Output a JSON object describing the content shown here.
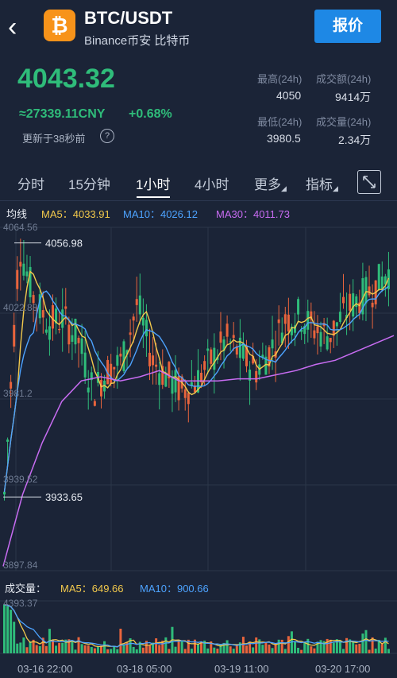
{
  "header": {
    "back_icon": "chevron-left-icon",
    "coin_icon": "bitcoin-icon",
    "coin_glyph": "₿",
    "pair": "BTC/USDT",
    "subtitle": "Binance币安 比特币",
    "quote_button": "报价"
  },
  "ticker": {
    "price": "4043.32",
    "cny": "≈27339.11CNY",
    "change": "+0.68%",
    "updated": "更新于38秒前",
    "help_icon": "question-circle-icon",
    "help_glyph": "?"
  },
  "stats": {
    "high_label": "最高(24h)",
    "high_value": "4050",
    "turnover_label": "成交额(24h)",
    "turnover_value": "9414万",
    "low_label": "最低(24h)",
    "low_value": "3980.5",
    "volume_label": "成交量(24h)",
    "volume_value": "2.34万"
  },
  "tabs": {
    "t1": "分时",
    "t2": "15分钟",
    "t3": "1小时",
    "t4": "4小时",
    "more": "更多",
    "indicator": "指标",
    "expand_icon": "expand-icon"
  },
  "ma": {
    "label": "均线",
    "ma5": "MA5：4033.91",
    "ma10": "MA10：4026.12",
    "ma30": "MA30：4011.73"
  },
  "vol": {
    "label": "成交量：",
    "ma5": "MA5：649.66",
    "ma10": "MA10：900.66"
  },
  "colors": {
    "up": "#2fbc7a",
    "down": "#e8643c",
    "ma5": "#f2c94c",
    "ma10": "#4da3ff",
    "ma30": "#c86cf2"
  },
  "chart_data": {
    "type": "candlestick",
    "y_ticks": [
      "4064.56",
      "4022.88",
      "3981.2",
      "3939.52",
      "3897.84"
    ],
    "ylim": [
      3897.84,
      4064.56
    ],
    "x_ticks": [
      "03-16 22:00",
      "03-18 05:00",
      "03-19 11:00",
      "03-20 17:00"
    ],
    "max_label": "4056.98",
    "min_label": "3933.65",
    "volume_max_label": "4393.37",
    "trend_points": [
      3935,
      4056,
      4030,
      4018,
      4020,
      4010,
      3985,
      3995,
      4000,
      4028,
      4000,
      3992,
      3985,
      3990,
      4000,
      4010,
      4003,
      3995,
      4005,
      4020,
      4022,
      4015,
      4012,
      4023,
      4030,
      4035,
      4043
    ],
    "ma30_points": [
      3900,
      3935,
      3960,
      3980,
      3990,
      3992,
      3990,
      3992,
      3995,
      3990,
      3990,
      3990,
      3991,
      3991,
      3993,
      3995,
      3998,
      4000,
      4004,
      4008,
      4012
    ]
  }
}
